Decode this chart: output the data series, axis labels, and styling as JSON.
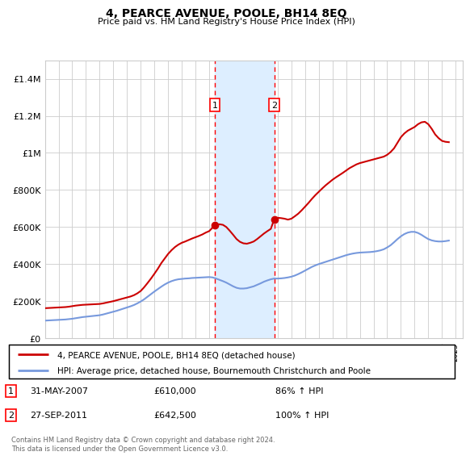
{
  "title": "4, PEARCE AVENUE, POOLE, BH14 8EQ",
  "subtitle": "Price paid vs. HM Land Registry's House Price Index (HPI)",
  "ylim": [
    0,
    1500000
  ],
  "yticks": [
    0,
    200000,
    400000,
    600000,
    800000,
    1000000,
    1200000,
    1400000
  ],
  "sale1_date": 2007.42,
  "sale1_price": 610000,
  "sale1_label": "1",
  "sale1_date_str": "31-MAY-2007",
  "sale1_price_str": "£610,000",
  "sale1_hpi_str": "86% ↑ HPI",
  "sale2_date": 2011.75,
  "sale2_price": 642500,
  "sale2_label": "2",
  "sale2_date_str": "27-SEP-2011",
  "sale2_price_str": "£642,500",
  "sale2_hpi_str": "100% ↑ HPI",
  "house_color": "#cc0000",
  "hpi_color": "#7799dd",
  "shade_color": "#ddeeff",
  "grid_color": "#cccccc",
  "legend_house": "4, PEARCE AVENUE, POOLE, BH14 8EQ (detached house)",
  "legend_hpi": "HPI: Average price, detached house, Bournemouth Christchurch and Poole",
  "footer": "Contains HM Land Registry data © Crown copyright and database right 2024.\nThis data is licensed under the Open Government Licence v3.0.",
  "house_x": [
    1995.0,
    1995.25,
    1995.5,
    1995.75,
    1996.0,
    1996.25,
    1996.5,
    1996.75,
    1997.0,
    1997.25,
    1997.5,
    1997.75,
    1998.0,
    1998.25,
    1998.5,
    1998.75,
    1999.0,
    1999.25,
    1999.5,
    1999.75,
    2000.0,
    2000.25,
    2000.5,
    2000.75,
    2001.0,
    2001.25,
    2001.5,
    2001.75,
    2002.0,
    2002.25,
    2002.5,
    2002.75,
    2003.0,
    2003.25,
    2003.5,
    2003.75,
    2004.0,
    2004.25,
    2004.5,
    2004.75,
    2005.0,
    2005.25,
    2005.5,
    2005.75,
    2006.0,
    2006.25,
    2006.5,
    2006.75,
    2007.0,
    2007.42,
    2007.75,
    2008.0,
    2008.25,
    2008.5,
    2008.75,
    2009.0,
    2009.25,
    2009.5,
    2009.75,
    2010.0,
    2010.25,
    2010.5,
    2010.75,
    2011.0,
    2011.25,
    2011.5,
    2011.75,
    2012.0,
    2012.25,
    2012.5,
    2012.75,
    2013.0,
    2013.25,
    2013.5,
    2013.75,
    2014.0,
    2014.25,
    2014.5,
    2014.75,
    2015.0,
    2015.25,
    2015.5,
    2015.75,
    2016.0,
    2016.25,
    2016.5,
    2016.75,
    2017.0,
    2017.25,
    2017.5,
    2017.75,
    2018.0,
    2018.25,
    2018.5,
    2018.75,
    2019.0,
    2019.25,
    2019.5,
    2019.75,
    2020.0,
    2020.25,
    2020.5,
    2020.75,
    2021.0,
    2021.25,
    2021.5,
    2021.75,
    2022.0,
    2022.25,
    2022.5,
    2022.75,
    2023.0,
    2023.25,
    2023.5,
    2023.75,
    2024.0,
    2024.25,
    2024.5
  ],
  "house_y": [
    162000,
    163000,
    164000,
    165000,
    166000,
    167000,
    168000,
    170000,
    173000,
    176000,
    178000,
    180000,
    181000,
    182000,
    183000,
    184000,
    185000,
    188000,
    192000,
    196000,
    200000,
    205000,
    210000,
    215000,
    220000,
    225000,
    232000,
    242000,
    255000,
    275000,
    298000,
    322000,
    348000,
    375000,
    405000,
    430000,
    455000,
    475000,
    492000,
    505000,
    515000,
    522000,
    530000,
    538000,
    545000,
    552000,
    560000,
    570000,
    578000,
    610000,
    615000,
    612000,
    600000,
    580000,
    558000,
    535000,
    520000,
    512000,
    510000,
    515000,
    522000,
    535000,
    550000,
    565000,
    578000,
    590000,
    642500,
    650000,
    648000,
    645000,
    640000,
    645000,
    658000,
    672000,
    690000,
    710000,
    730000,
    752000,
    772000,
    790000,
    808000,
    825000,
    840000,
    855000,
    868000,
    880000,
    892000,
    905000,
    918000,
    928000,
    938000,
    945000,
    950000,
    955000,
    960000,
    965000,
    970000,
    975000,
    980000,
    990000,
    1005000,
    1025000,
    1055000,
    1085000,
    1105000,
    1120000,
    1130000,
    1140000,
    1155000,
    1165000,
    1168000,
    1155000,
    1130000,
    1100000,
    1080000,
    1065000,
    1060000,
    1058000
  ],
  "hpi_x": [
    1995.0,
    1995.25,
    1995.5,
    1995.75,
    1996.0,
    1996.25,
    1996.5,
    1996.75,
    1997.0,
    1997.25,
    1997.5,
    1997.75,
    1998.0,
    1998.25,
    1998.5,
    1998.75,
    1999.0,
    1999.25,
    1999.5,
    1999.75,
    2000.0,
    2000.25,
    2000.5,
    2000.75,
    2001.0,
    2001.25,
    2001.5,
    2001.75,
    2002.0,
    2002.25,
    2002.5,
    2002.75,
    2003.0,
    2003.25,
    2003.5,
    2003.75,
    2004.0,
    2004.25,
    2004.5,
    2004.75,
    2005.0,
    2005.25,
    2005.5,
    2005.75,
    2006.0,
    2006.25,
    2006.5,
    2006.75,
    2007.0,
    2007.25,
    2007.5,
    2007.75,
    2008.0,
    2008.25,
    2008.5,
    2008.75,
    2009.0,
    2009.25,
    2009.5,
    2009.75,
    2010.0,
    2010.25,
    2010.5,
    2010.75,
    2011.0,
    2011.25,
    2011.5,
    2011.75,
    2012.0,
    2012.25,
    2012.5,
    2012.75,
    2013.0,
    2013.25,
    2013.5,
    2013.75,
    2014.0,
    2014.25,
    2014.5,
    2014.75,
    2015.0,
    2015.25,
    2015.5,
    2015.75,
    2016.0,
    2016.25,
    2016.5,
    2016.75,
    2017.0,
    2017.25,
    2017.5,
    2017.75,
    2018.0,
    2018.25,
    2018.5,
    2018.75,
    2019.0,
    2019.25,
    2019.5,
    2019.75,
    2020.0,
    2020.25,
    2020.5,
    2020.75,
    2021.0,
    2021.25,
    2021.5,
    2021.75,
    2022.0,
    2022.25,
    2022.5,
    2022.75,
    2023.0,
    2023.25,
    2023.5,
    2023.75,
    2024.0,
    2024.25,
    2024.5
  ],
  "hpi_y": [
    95000,
    96000,
    97000,
    98000,
    99000,
    100000,
    101000,
    103000,
    105000,
    108000,
    111000,
    114000,
    116000,
    118000,
    120000,
    122000,
    124000,
    128000,
    133000,
    138000,
    143000,
    148000,
    154000,
    160000,
    166000,
    172000,
    179000,
    188000,
    198000,
    210000,
    224000,
    238000,
    252000,
    265000,
    278000,
    290000,
    300000,
    308000,
    314000,
    318000,
    320000,
    322000,
    323000,
    325000,
    326000,
    327000,
    328000,
    329000,
    330000,
    328000,
    322000,
    315000,
    308000,
    300000,
    290000,
    280000,
    272000,
    268000,
    268000,
    270000,
    275000,
    280000,
    288000,
    296000,
    305000,
    312000,
    318000,
    322000,
    322000,
    323000,
    325000,
    328000,
    332000,
    338000,
    346000,
    355000,
    365000,
    375000,
    385000,
    393000,
    400000,
    406000,
    412000,
    418000,
    424000,
    430000,
    436000,
    442000,
    448000,
    453000,
    457000,
    460000,
    462000,
    463000,
    464000,
    465000,
    467000,
    470000,
    474000,
    480000,
    490000,
    502000,
    518000,
    535000,
    550000,
    562000,
    570000,
    574000,
    574000,
    568000,
    558000,
    546000,
    535000,
    528000,
    524000,
    522000,
    522000,
    524000,
    527000
  ]
}
